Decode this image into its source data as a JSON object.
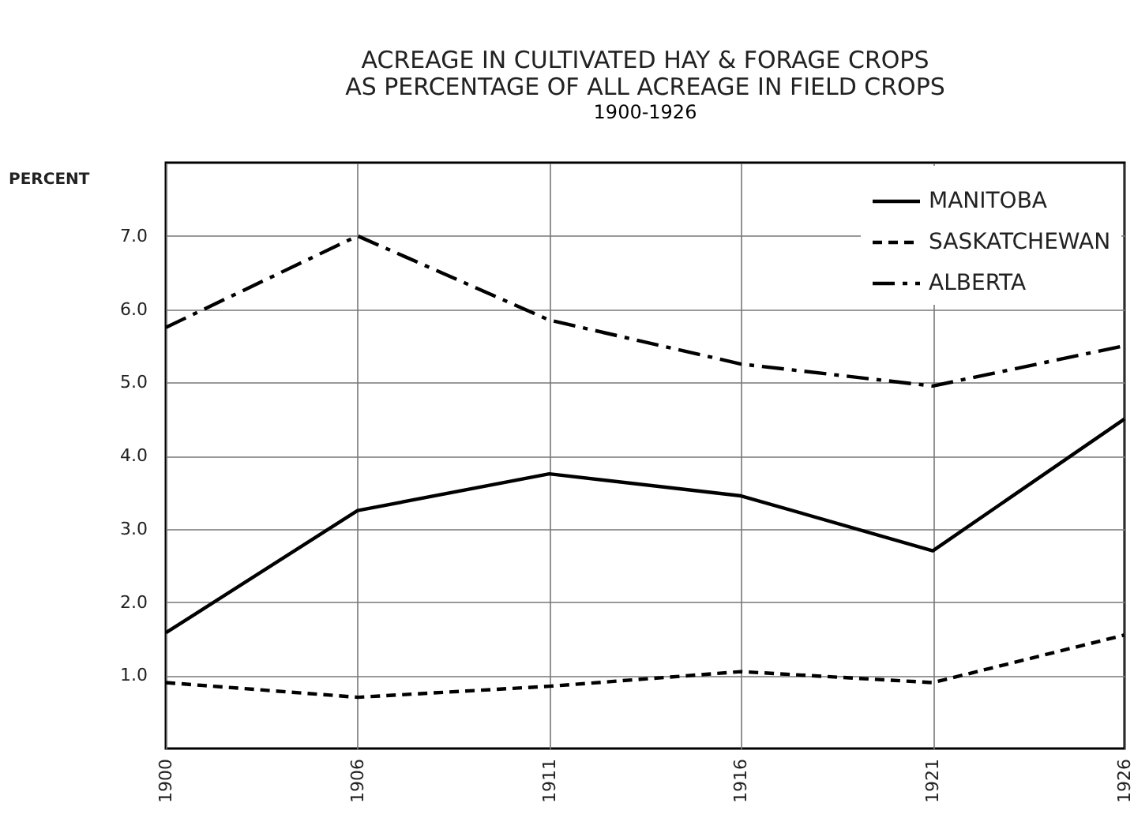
{
  "chart_data": {
    "type": "line",
    "title": "ACREAGE IN CULTIVATED HAY & FORAGE CROPS\nAS PERCENTAGE OF ALL ACREAGE IN FIELD CROPS",
    "subtitle": "1900-1926",
    "ylabel": "PERCENT",
    "categories": [
      "1900",
      "1906",
      "1911",
      "1916",
      "1921",
      "1926"
    ],
    "series": [
      {
        "name": "MANITOBA",
        "color": "#000000",
        "line_style": "solid",
        "values": [
          1.58,
          3.25,
          3.75,
          3.45,
          2.7,
          4.5
        ]
      },
      {
        "name": "SASKATCHEWAN",
        "color": "#000000",
        "line_style": "dashed",
        "values": [
          0.9,
          0.7,
          0.85,
          1.05,
          0.9,
          1.55
        ]
      },
      {
        "name": "ALBERTA",
        "color": "#000000",
        "line_style": "dashdot",
        "values": [
          5.75,
          7.0,
          5.85,
          5.25,
          4.95,
          5.5
        ]
      }
    ],
    "ylim": [
      0,
      8
    ],
    "yticks": [
      {
        "value": 1,
        "label": "1.0"
      },
      {
        "value": 2,
        "label": "2.0"
      },
      {
        "value": 3,
        "label": "3.0"
      },
      {
        "value": 4,
        "label": "4.0"
      },
      {
        "value": 5,
        "label": "5.0"
      },
      {
        "value": 6,
        "label": "6.0"
      },
      {
        "value": 7,
        "label": "7.0"
      }
    ],
    "grid": true,
    "legend": "top right"
  }
}
